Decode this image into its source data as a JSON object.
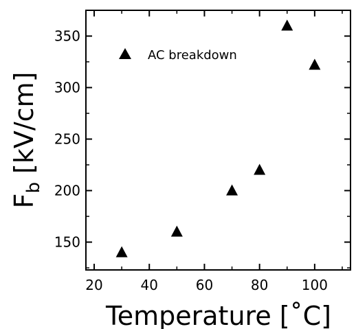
{
  "chart_data": {
    "type": "scatter",
    "title": "",
    "xlabel": "Temperature [˚C]",
    "ylabel_main": "F",
    "ylabel_sub": "b",
    "ylabel_unit": " [kV/cm]",
    "xlim": [
      17,
      113
    ],
    "ylim": [
      123,
      375
    ],
    "x_ticks": [
      20,
      40,
      60,
      80,
      100
    ],
    "y_ticks": [
      150,
      200,
      250,
      300,
      350
    ],
    "grid": false,
    "legend_position": "top-left",
    "marker": "triangle",
    "marker_color": "#000000",
    "series": [
      {
        "name": "AC breakdown",
        "points": [
          {
            "x": 30,
            "y": 140
          },
          {
            "x": 50,
            "y": 160
          },
          {
            "x": 70,
            "y": 200
          },
          {
            "x": 80,
            "y": 220
          },
          {
            "x": 90,
            "y": 360
          },
          {
            "x": 100,
            "y": 322
          }
        ]
      }
    ]
  }
}
